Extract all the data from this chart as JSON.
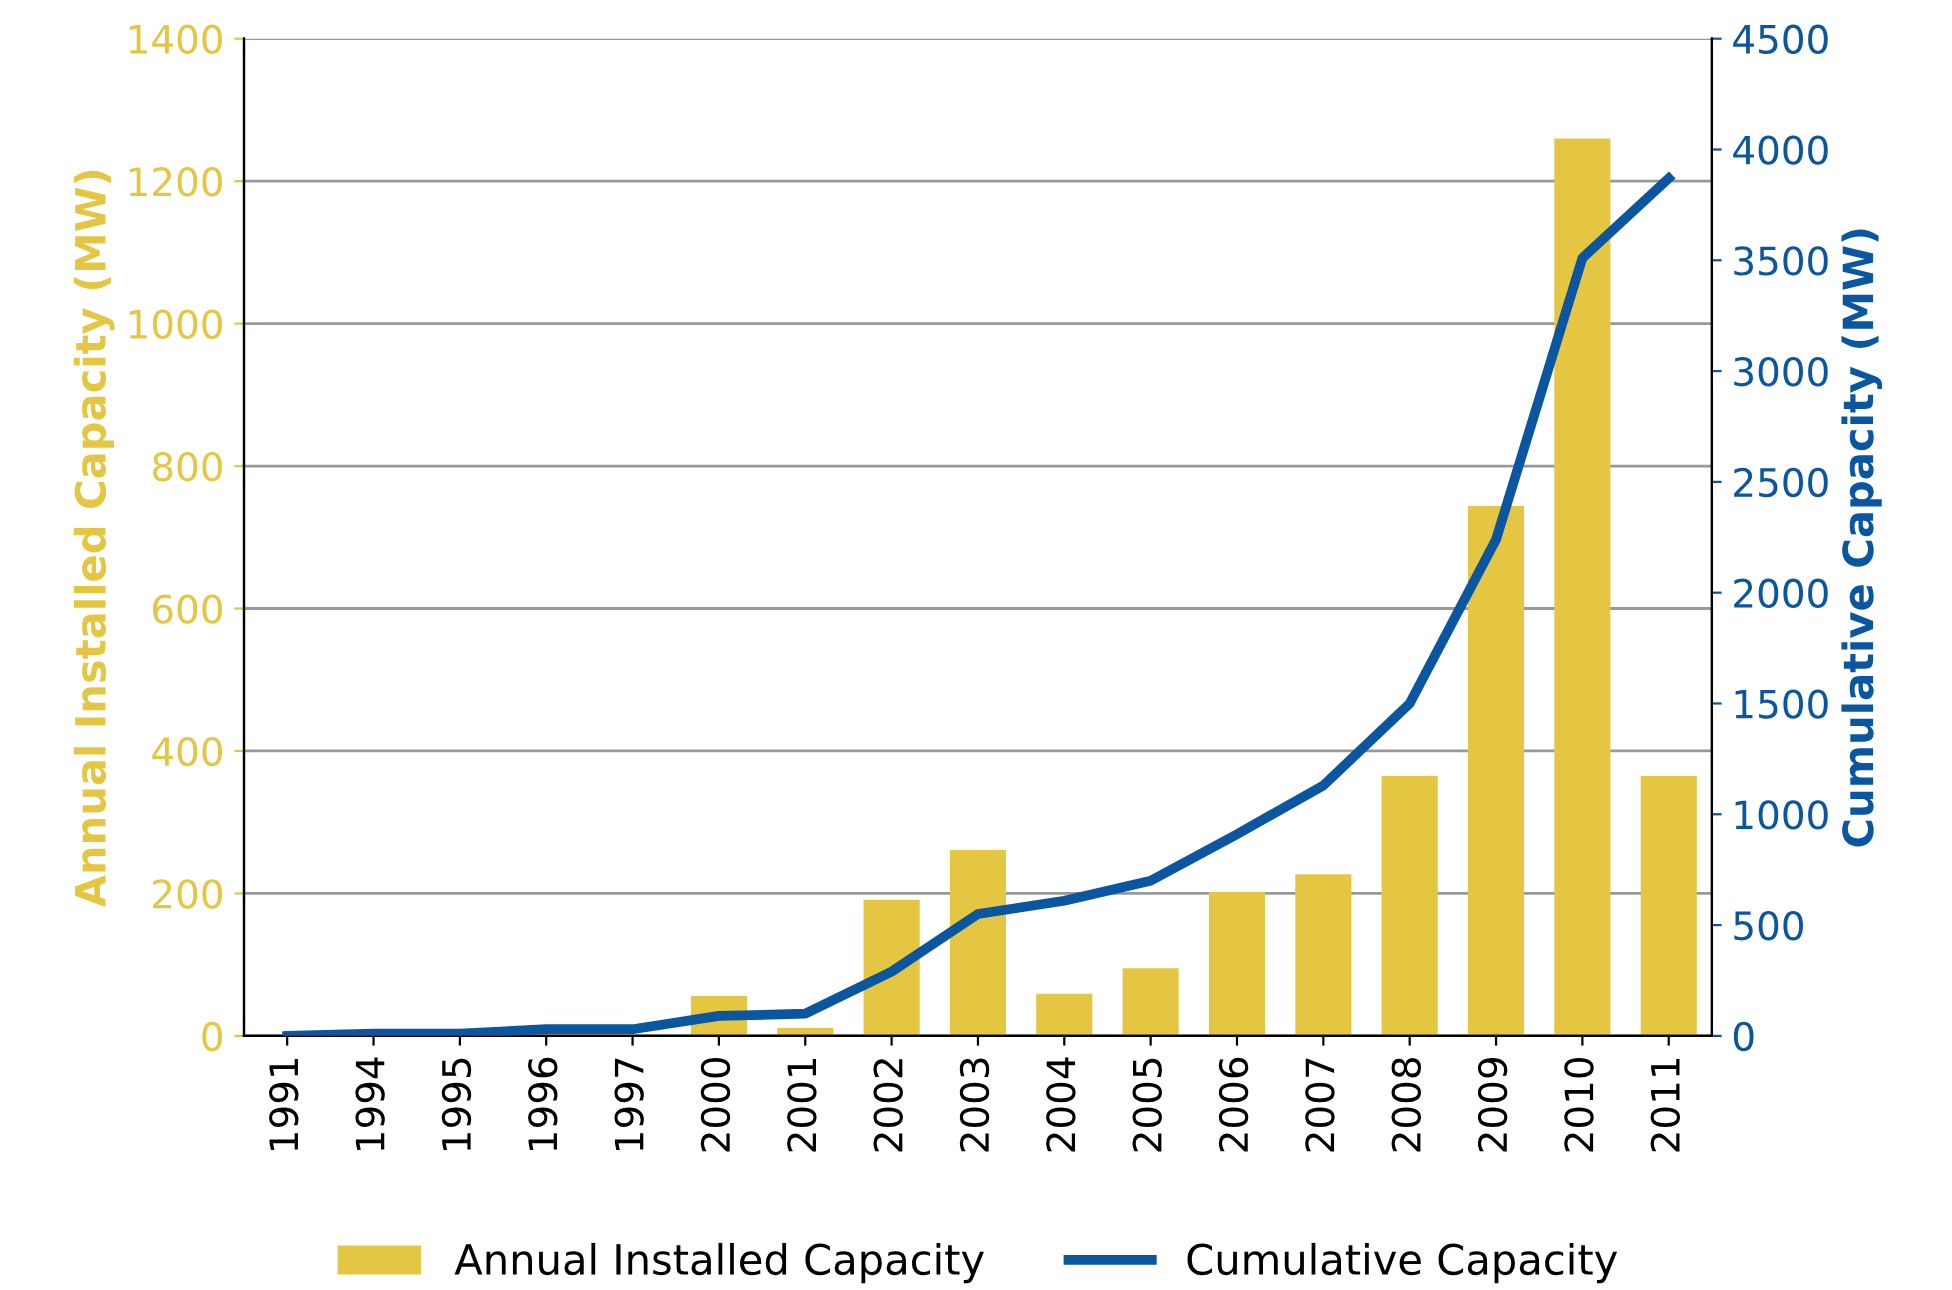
{
  "chart_data": {
    "type": "bar",
    "categories": [
      "1991",
      "1994",
      "1995",
      "1996",
      "1997",
      "2000",
      "2001",
      "2002",
      "2003",
      "2004",
      "2005",
      "2006",
      "2007",
      "2008",
      "2009",
      "2010",
      "2011"
    ],
    "series": [
      {
        "name": "Annual Installed Capacity",
        "color": "#e5c643",
        "values": [
          null,
          null,
          null,
          null,
          null,
          56,
          11,
          191,
          261,
          59,
          95,
          202,
          227,
          365,
          744,
          1260,
          365
        ]
      },
      {
        "name": "Cumulative Capacity",
        "type": "line",
        "axis": "y2",
        "color": "#0a56a0",
        "values": [
          0,
          10,
          10,
          30,
          30,
          90,
          100,
          290,
          550,
          610,
          700,
          910,
          1130,
          1500,
          2240,
          3510,
          3870
        ]
      }
    ],
    "ylabel": "Annual Installed Capacity (MW)",
    "y2label": "Cumulative Capacity (MW)",
    "ylim": [
      0,
      1400
    ],
    "yticks": [
      0,
      200,
      400,
      600,
      800,
      1000,
      1200,
      1400
    ],
    "y2lim": [
      0,
      4500
    ],
    "y2ticks": [
      0,
      500,
      1000,
      1500,
      2000,
      2500,
      3000,
      3500,
      4000,
      4500
    ],
    "grid": "y",
    "legend": "bottom",
    "marker": "none",
    "line_style": "solid"
  }
}
